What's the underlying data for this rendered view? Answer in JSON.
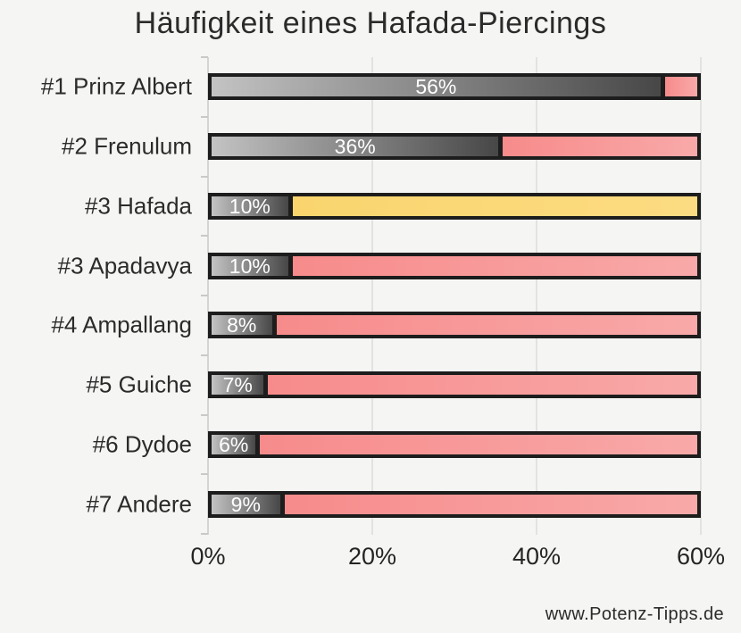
{
  "title": "Häufigkeit eines Hafada-Piercings",
  "watermark": "www.Potenz-Tipps.de",
  "chart_data": {
    "type": "bar",
    "orientation": "horizontal",
    "title": "Häufigkeit eines Hafada-Piercings",
    "categories": [
      "#1 Prinz Albert",
      "#2 Frenulum",
      "#3 Hafada",
      "#3 Apadavya",
      "#4 Ampallang",
      "#5 Guiche",
      "#6 Dydoe",
      "#7 Andere"
    ],
    "values": [
      56,
      36,
      10,
      10,
      8,
      7,
      6,
      9
    ],
    "value_labels": [
      "56%",
      "36%",
      "10%",
      "10%",
      "8%",
      "7%",
      "6%",
      "9%"
    ],
    "bar_total": 60,
    "xlim": [
      0,
      60
    ],
    "x_ticks": [
      {
        "label": "0%",
        "value": 0
      },
      {
        "label": "20%",
        "value": 20
      },
      {
        "label": "40%",
        "value": 40
      },
      {
        "label": "60%",
        "value": 60
      }
    ],
    "grid": true,
    "legend": "none",
    "highlight_category": "#3 Hafada",
    "highlight_index": 2,
    "colors": {
      "background": "#f5f5f3",
      "bar_border": "#1d1d1d",
      "value_segment_gradient_start": "#c3c3c3",
      "value_segment_gradient_end": "#474747",
      "remainder_gradient_start": "#f78b8b",
      "remainder_gradient_end": "#f9a9a9",
      "highlight_gradient_start": "#fad56e",
      "highlight_gradient_end": "#fcdc82",
      "value_text": "#ffffff",
      "gridline": "#e2e2e0",
      "axis_line": "#d4d4d2",
      "text": "#2b2b2b"
    }
  }
}
